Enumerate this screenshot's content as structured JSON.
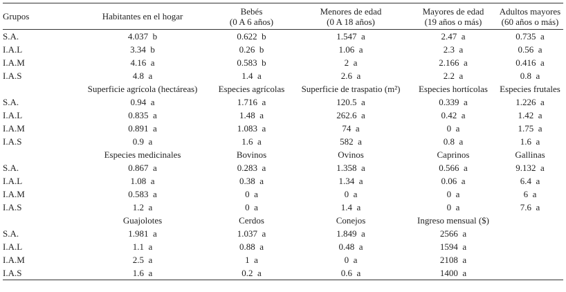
{
  "table": {
    "corner": "Grupos",
    "sections": [
      {
        "columns": [
          "Habitantes en el hogar",
          "Bebés\n(0 A 6 años)",
          "Menores de edad\n(0 A 18 años)",
          "Mayores de edad\n(19 años o más)",
          "Adultos mayores\n(60 años o más)"
        ],
        "rows": [
          {
            "group": "S.A.",
            "cells": [
              "4.037  b",
              "0.622  b",
              "1.547  a",
              "2.47  a",
              "0.735  a"
            ]
          },
          {
            "group": "I.A.L",
            "cells": [
              "3.34  b",
              "0.26  b",
              "1.06  a",
              "2.3  a",
              "0.56  a"
            ]
          },
          {
            "group": "I.A.M",
            "cells": [
              "4.16  a",
              "0.583  b",
              "2  a",
              "2.166  a",
              "0.416  a"
            ]
          },
          {
            "group": "I.A.S",
            "cells": [
              "4.8  a",
              "1.4  a",
              "2.6  a",
              "2.2  a",
              "0.8  a"
            ]
          }
        ]
      },
      {
        "columns": [
          "Superficie agrícola (hectáreas)",
          "Especies agrícolas",
          "Superficie de traspatio (m²)",
          "Especies hortícolas",
          "Especies frutales"
        ],
        "rows": [
          {
            "group": "S.A.",
            "cells": [
              "0.94  a",
              "1.716  a",
              "120.5  a",
              "0.339  a",
              "1.226  a"
            ]
          },
          {
            "group": "I.A.L",
            "cells": [
              "0.835  a",
              "1.48  a",
              "262.6  a",
              "0.42  a",
              "1.42  a"
            ]
          },
          {
            "group": "I.A.M",
            "cells": [
              "0.891  a",
              "1.083  a",
              "74  a",
              "0  a",
              "1.75  a"
            ]
          },
          {
            "group": "I.A.S",
            "cells": [
              "0.9  a",
              "1.6  a",
              "582  a",
              "0.8  a",
              "1.6  a"
            ]
          }
        ]
      },
      {
        "columns": [
          "Especies medicinales",
          "Bovinos",
          "Ovinos",
          "Caprinos",
          "Gallinas"
        ],
        "rows": [
          {
            "group": "S.A.",
            "cells": [
              "0.867  a",
              "0.283  a",
              "1.358  a",
              "0.566  a",
              "9.132  a"
            ]
          },
          {
            "group": "I.A.L",
            "cells": [
              "1.08  a",
              "0.38  a",
              "1.34  a",
              "0.06  a",
              "6.4  a"
            ]
          },
          {
            "group": "I.A.M",
            "cells": [
              "0.583  a",
              "0  a",
              "0  a",
              "0  a",
              "6  a"
            ]
          },
          {
            "group": "I.A.S",
            "cells": [
              "1.2  a",
              "0  a",
              "1.4  a",
              "0  a",
              "7.6  a"
            ]
          }
        ]
      },
      {
        "columns": [
          "Guajolotes",
          "Cerdos",
          "Conejos",
          "Ingreso mensual ($)"
        ],
        "rows": [
          {
            "group": "S.A.",
            "cells": [
              "1.981  a",
              "1.037  a",
              "1.849  a",
              "2566  a"
            ]
          },
          {
            "group": "I.A.L",
            "cells": [
              "1.1  a",
              "0.88  a",
              "0.48  a",
              "1594  a"
            ]
          },
          {
            "group": "I.A.M",
            "cells": [
              "2.5  a",
              "1  a",
              "0  a",
              "2108  a"
            ]
          },
          {
            "group": "I.A.S",
            "cells": [
              "1.6  a",
              "0.2  a",
              "0.6  a",
              "1400  a"
            ]
          }
        ]
      }
    ]
  }
}
